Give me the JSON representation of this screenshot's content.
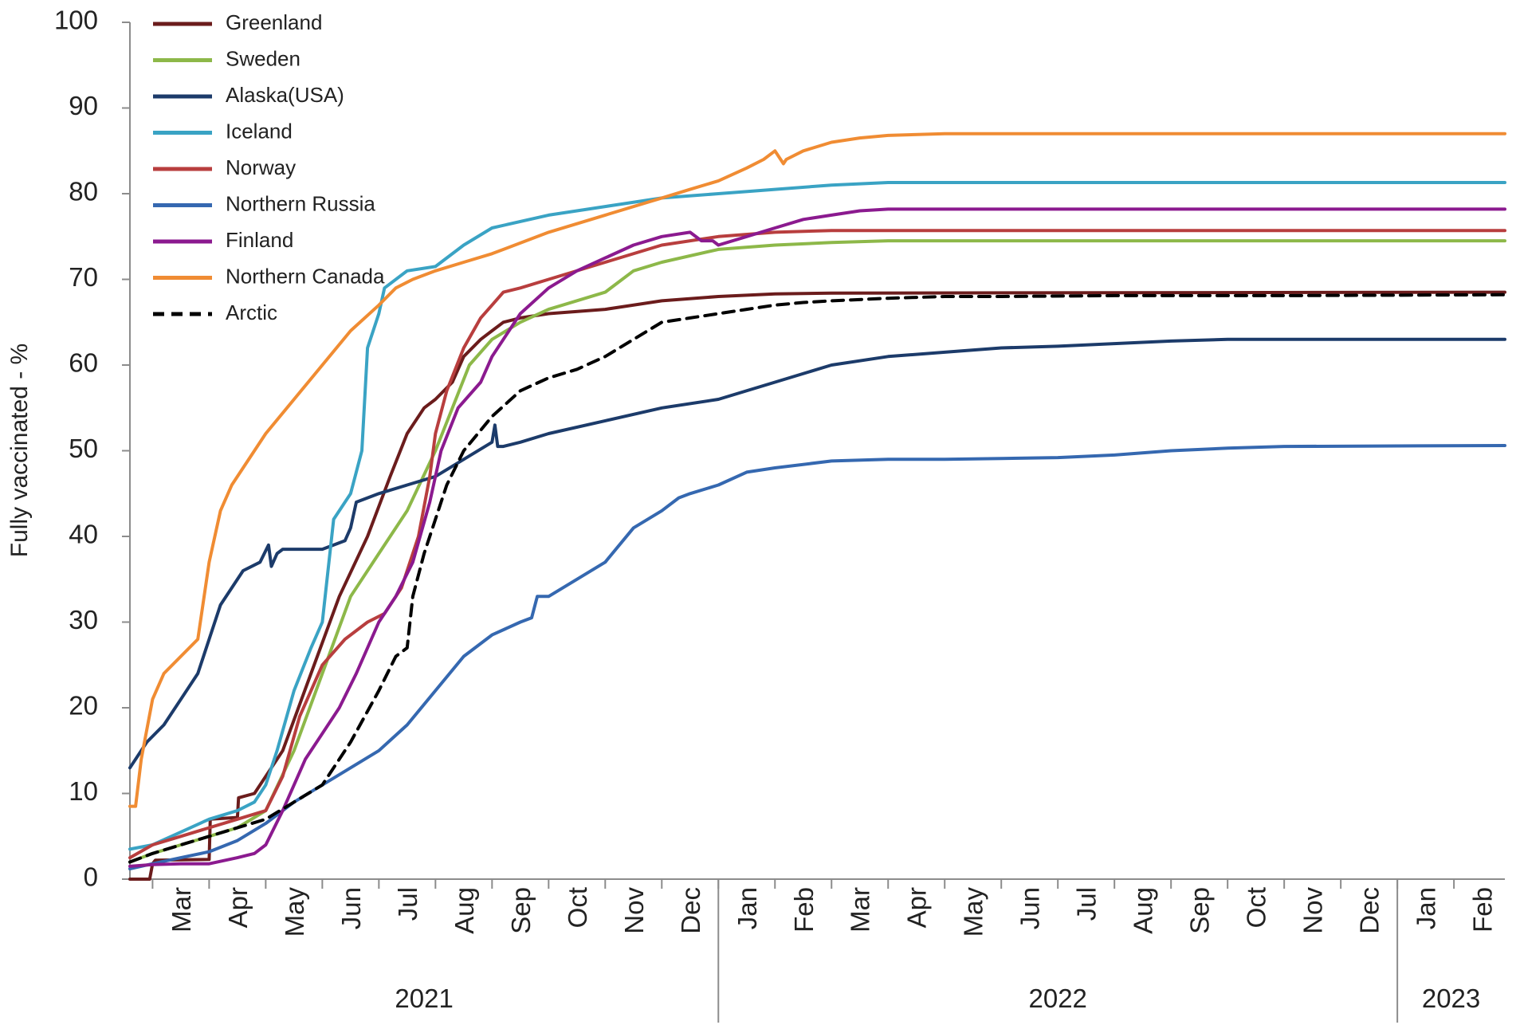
{
  "chart_data": {
    "type": "line",
    "title": "",
    "xlabel": "",
    "ylabel": "Fully vaccinated - %",
    "ylim": [
      0,
      100
    ],
    "yticks": [
      0,
      10,
      20,
      30,
      40,
      50,
      60,
      70,
      80,
      90,
      100
    ],
    "x_unit": "months since start of March 2021 (0 = 1 Mar 2021)",
    "xlim": [
      -0.4,
      23.9
    ],
    "months": [
      {
        "label": "Mar",
        "x": 0
      },
      {
        "label": "Apr",
        "x": 1
      },
      {
        "label": "May",
        "x": 2
      },
      {
        "label": "Jun",
        "x": 3
      },
      {
        "label": "Jul",
        "x": 4
      },
      {
        "label": "Aug",
        "x": 5
      },
      {
        "label": "Sep",
        "x": 6
      },
      {
        "label": "Oct",
        "x": 7
      },
      {
        "label": "Nov",
        "x": 8
      },
      {
        "label": "Dec",
        "x": 9
      },
      {
        "label": "Jan",
        "x": 10
      },
      {
        "label": "Feb",
        "x": 11
      },
      {
        "label": "Mar",
        "x": 12
      },
      {
        "label": "Apr",
        "x": 13
      },
      {
        "label": "May",
        "x": 14
      },
      {
        "label": "Jun",
        "x": 15
      },
      {
        "label": "Jul",
        "x": 16
      },
      {
        "label": "Aug",
        "x": 17
      },
      {
        "label": "Sep",
        "x": 18
      },
      {
        "label": "Oct",
        "x": 19
      },
      {
        "label": "Nov",
        "x": 20
      },
      {
        "label": "Dec",
        "x": 21
      },
      {
        "label": "Jan",
        "x": 22
      },
      {
        "label": "Feb",
        "x": 23
      }
    ],
    "years": [
      {
        "label": "2021",
        "from": -0.4,
        "to": 10
      },
      {
        "label": "2022",
        "from": 10,
        "to": 22
      },
      {
        "label": "2023",
        "from": 22,
        "to": 23.9
      }
    ],
    "legend_position": "top-left",
    "series": [
      {
        "name": "Greenland",
        "color": "#6b1c1c",
        "dashed": false,
        "x": [
          -0.4,
          -0.05,
          0.0,
          0.05,
          1.0,
          1.02,
          1.5,
          1.52,
          1.8,
          2.3,
          2.8,
          3.3,
          3.8,
          4.2,
          4.5,
          4.8,
          5.0,
          5.3,
          5.5,
          5.8,
          6.0,
          6.2,
          6.5,
          7.0,
          8.0,
          9.0,
          10.0,
          11.0,
          12.0,
          23.9
        ],
        "y": [
          0,
          0,
          1.8,
          2.2,
          2.3,
          7.0,
          7.2,
          9.5,
          10.0,
          15,
          24,
          33,
          40,
          47,
          52,
          55,
          56,
          58,
          61,
          63,
          64,
          65,
          65.5,
          66,
          66.5,
          67.5,
          68,
          68.3,
          68.4,
          68.5
        ]
      },
      {
        "name": "Sweden",
        "color": "#8db849",
        "dashed": false,
        "x": [
          -0.4,
          0,
          0.5,
          1.0,
          1.5,
          2.0,
          2.5,
          3.0,
          3.5,
          4.0,
          4.5,
          5.0,
          5.3,
          5.6,
          6.0,
          6.5,
          7.0,
          8.0,
          8.5,
          9.0,
          10.0,
          11.0,
          12.0,
          13.0,
          23.9
        ],
        "y": [
          2,
          3,
          4,
          5,
          6,
          8,
          15,
          24,
          33,
          38,
          43,
          50,
          55,
          60,
          63,
          65,
          66.5,
          68.5,
          71,
          72,
          73.5,
          74,
          74.3,
          74.5,
          74.5
        ]
      },
      {
        "name": "Alaska(USA)",
        "color": "#1c3b6a",
        "dashed": false,
        "x": [
          -0.4,
          -0.1,
          0.2,
          0.5,
          0.8,
          1.0,
          1.2,
          1.4,
          1.6,
          1.9,
          2.05,
          2.1,
          2.2,
          2.3,
          3.0,
          3.4,
          3.5,
          3.6,
          4.0,
          4.5,
          5.0,
          5.5,
          6.0,
          6.05,
          6.1,
          6.15,
          6.2,
          6.5,
          7.0,
          8.0,
          9.0,
          10.0,
          11.0,
          12.0,
          13.0,
          14.0,
          15.0,
          16.0,
          17.0,
          18.0,
          19.0,
          20.0,
          23.9
        ],
        "y": [
          13,
          16,
          18,
          21,
          24,
          28,
          32,
          34,
          36,
          37,
          39,
          36.5,
          38,
          38.5,
          38.5,
          39.5,
          41,
          44,
          45,
          46,
          47,
          49,
          51,
          53,
          50.5,
          50.5,
          50.5,
          51,
          52,
          53.5,
          55,
          56,
          58,
          60,
          61,
          61.5,
          62,
          62.2,
          62.5,
          62.8,
          63,
          63,
          63
        ]
      },
      {
        "name": "Iceland",
        "color": "#3aa3c4",
        "dashed": false,
        "x": [
          -0.4,
          0,
          0.5,
          1.0,
          1.5,
          1.8,
          2.0,
          2.2,
          2.5,
          2.8,
          3.0,
          3.2,
          3.5,
          3.7,
          3.8,
          4.0,
          4.1,
          4.5,
          5.0,
          5.5,
          6.0,
          7.0,
          8.0,
          9.0,
          10.0,
          11.0,
          12.0,
          13.0,
          23.9
        ],
        "y": [
          3.5,
          4,
          5.5,
          7,
          8,
          9,
          11,
          15,
          22,
          27,
          30,
          42,
          45,
          50,
          62,
          66,
          69,
          71,
          71.5,
          74,
          76,
          77.5,
          78.5,
          79.5,
          80,
          80.5,
          81,
          81.3,
          81.3
        ]
      },
      {
        "name": "Norway",
        "color": "#b83e3e",
        "dashed": false,
        "x": [
          -0.4,
          0,
          0.5,
          1.0,
          1.5,
          2.0,
          2.3,
          2.6,
          3.0,
          3.4,
          3.8,
          4.1,
          4.4,
          4.7,
          4.9,
          5.0,
          5.2,
          5.5,
          5.8,
          6.0,
          6.2,
          6.5,
          7.0,
          8.0,
          9.0,
          10.0,
          11.0,
          12.0,
          23.9
        ],
        "y": [
          2.5,
          4,
          5,
          6,
          7,
          8,
          12,
          19,
          25,
          28,
          30,
          31,
          34,
          40,
          47,
          52,
          57,
          62,
          65.5,
          67,
          68.5,
          69,
          70,
          72,
          74,
          75,
          75.5,
          75.7,
          75.7
        ]
      },
      {
        "name": "Northern Russia",
        "color": "#3568b0",
        "dashed": false,
        "x": [
          -0.4,
          0,
          0.5,
          1.0,
          1.5,
          2.0,
          2.5,
          3.0,
          4.0,
          4.5,
          5.0,
          5.5,
          6.0,
          6.5,
          6.7,
          6.8,
          7.0,
          7.5,
          8.0,
          8.5,
          9.0,
          9.3,
          9.5,
          10.0,
          10.5,
          11.0,
          12.0,
          13.0,
          14.0,
          15.0,
          16.0,
          17.0,
          18.0,
          19.0,
          20.0,
          23.9
        ],
        "y": [
          1.2,
          1.8,
          2.5,
          3.2,
          4.5,
          6.5,
          9,
          11,
          15,
          18,
          22,
          26,
          28.5,
          30,
          30.5,
          33,
          33,
          35,
          37,
          41,
          43,
          44.5,
          45,
          46,
          47.5,
          48,
          48.8,
          49,
          49,
          49.1,
          49.2,
          49.5,
          50,
          50.3,
          50.5,
          50.6
        ]
      },
      {
        "name": "Finland",
        "color": "#8b1a8f",
        "dashed": false,
        "x": [
          -0.4,
          0,
          0.5,
          1.0,
          1.5,
          1.8,
          2.0,
          2.3,
          2.7,
          3.0,
          3.3,
          3.6,
          4.0,
          4.3,
          4.6,
          4.9,
          5.1,
          5.4,
          5.8,
          6.0,
          6.5,
          7.0,
          7.5,
          8.0,
          8.5,
          9.0,
          9.5,
          9.7,
          9.9,
          10.0,
          10.5,
          11.0,
          11.5,
          12.0,
          12.5,
          13.0,
          23.9
        ],
        "y": [
          1.5,
          1.7,
          1.8,
          1.8,
          2.5,
          3.0,
          4.0,
          8,
          14,
          17,
          20,
          24,
          30,
          33,
          37,
          44,
          50,
          55,
          58,
          61,
          66,
          69,
          71,
          72.5,
          74,
          75,
          75.5,
          74.5,
          74.5,
          74,
          75,
          76,
          77,
          77.5,
          78,
          78.2,
          78.2
        ]
      },
      {
        "name": "Northern Canada",
        "color": "#f08c33",
        "dashed": false,
        "x": [
          -0.4,
          -0.3,
          -0.2,
          0.0,
          0.2,
          0.5,
          0.8,
          1.0,
          1.2,
          1.4,
          1.6,
          1.8,
          2.0,
          2.5,
          3.0,
          3.5,
          4.0,
          4.3,
          4.6,
          5.0,
          5.5,
          6.0,
          7.0,
          8.0,
          9.0,
          9.5,
          10.0,
          10.5,
          10.8,
          11.0,
          11.15,
          11.2,
          11.5,
          12.0,
          12.5,
          13.0,
          14.0,
          15.0,
          16.0,
          23.9
        ],
        "y": [
          8.5,
          8.5,
          14,
          21,
          24,
          26,
          28,
          37,
          43,
          46,
          48,
          50,
          52,
          56,
          60,
          64,
          67,
          69,
          70,
          71,
          72,
          73,
          75.5,
          77.5,
          79.5,
          80.5,
          81.5,
          83,
          84,
          85,
          83.5,
          84,
          85,
          86,
          86.5,
          86.8,
          87,
          87,
          87,
          87
        ]
      },
      {
        "name": "Arctic",
        "color": "#000000",
        "dashed": true,
        "x": [
          -0.4,
          0,
          0.5,
          1.0,
          1.5,
          2.0,
          2.5,
          3.0,
          3.5,
          4.0,
          4.3,
          4.5,
          4.6,
          4.8,
          5.0,
          5.2,
          5.5,
          6.0,
          6.5,
          7.0,
          7.5,
          8.0,
          8.5,
          9.0,
          9.5,
          10.0,
          10.5,
          11.0,
          11.5,
          12.0,
          13.0,
          14.0,
          15.0,
          17.0,
          20.0,
          23.9
        ],
        "y": [
          2,
          3,
          4,
          5,
          6,
          7,
          9,
          11,
          16,
          22,
          26,
          27,
          33,
          38,
          42,
          46,
          50,
          54,
          57,
          58.5,
          59.5,
          61,
          63,
          65,
          65.5,
          66,
          66.5,
          67,
          67.3,
          67.5,
          67.8,
          68,
          68,
          68.1,
          68.1,
          68.2
        ]
      }
    ]
  }
}
